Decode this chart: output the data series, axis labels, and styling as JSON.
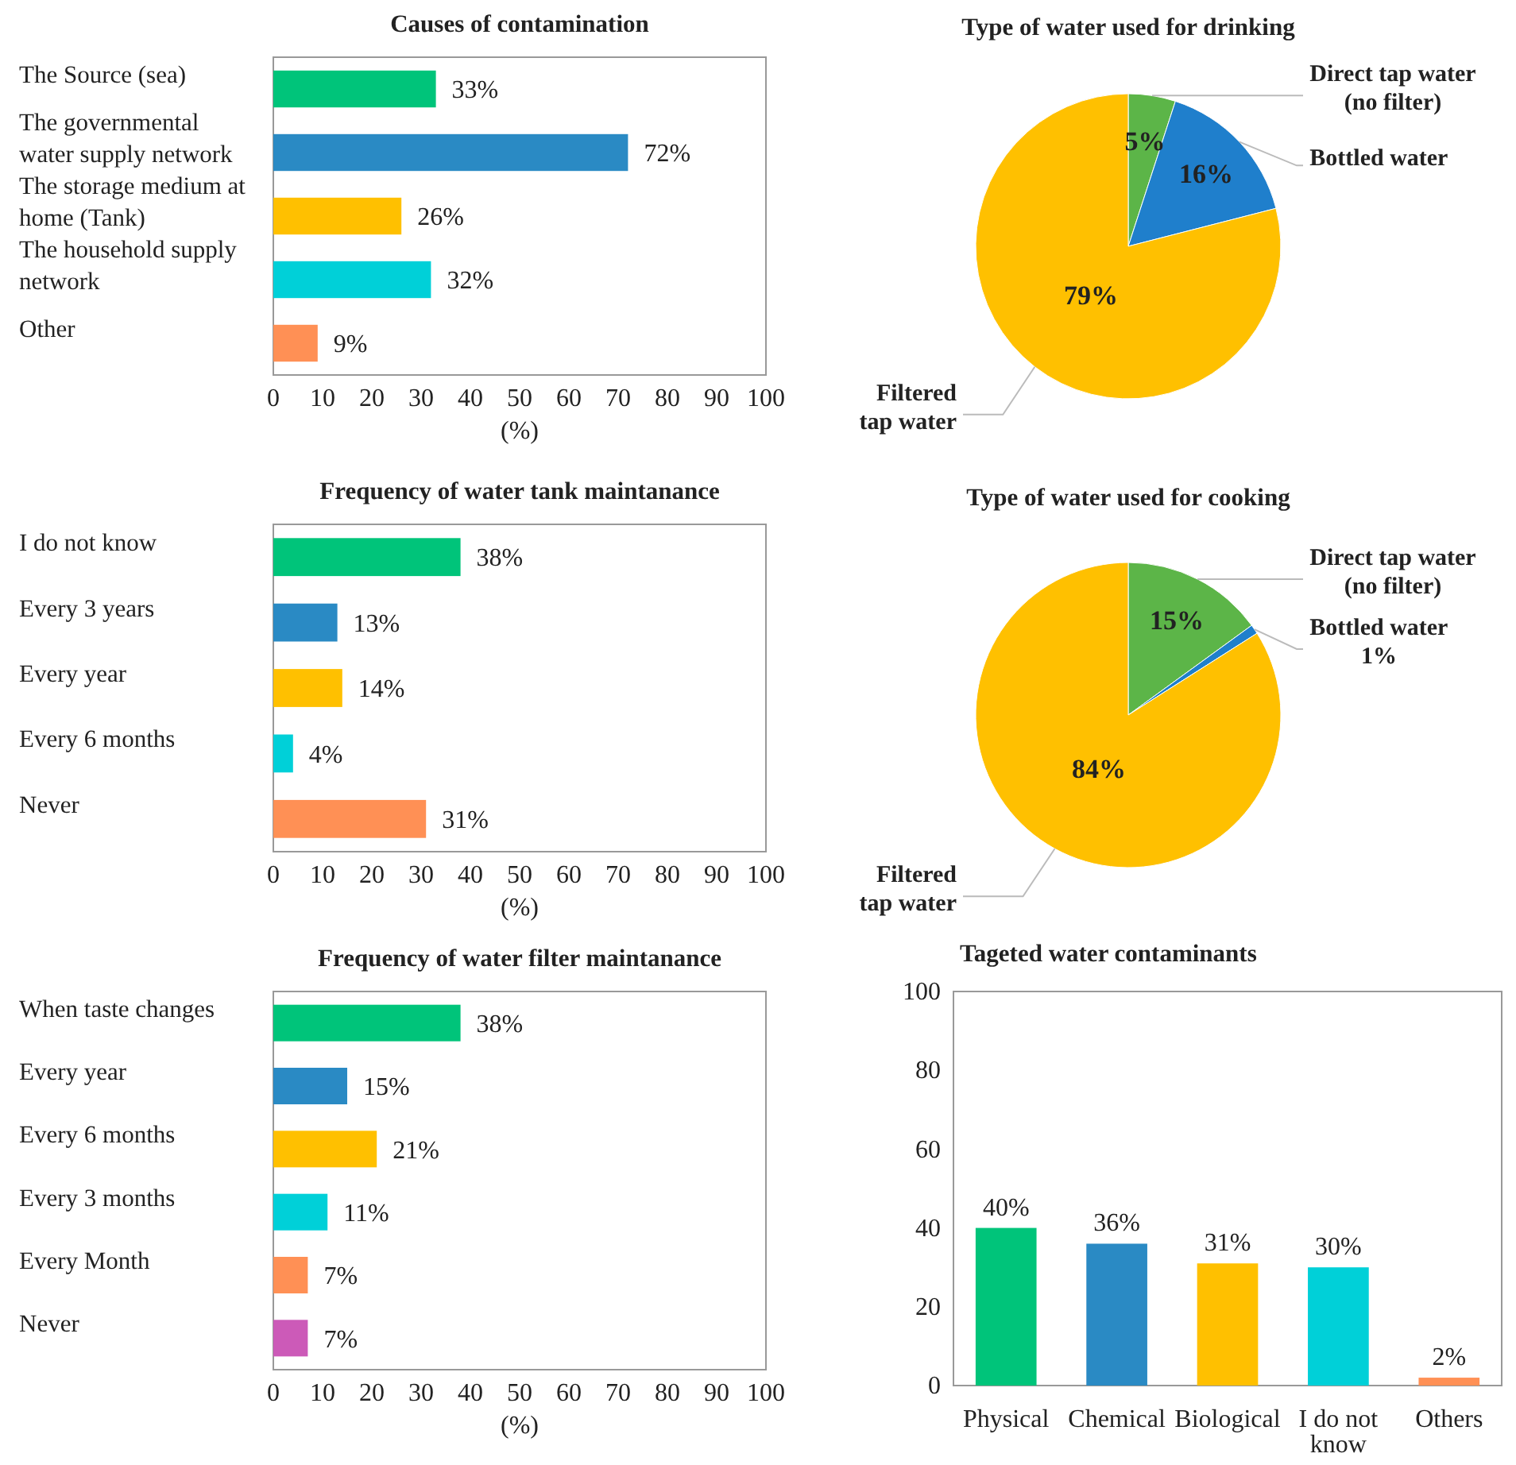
{
  "chart_data": [
    {
      "type": "bar",
      "orientation": "horizontal",
      "title": "Causes of contamination",
      "xlabel": "(%)",
      "categories": [
        "The Source (sea)",
        "The governmental water supply network",
        "The storage medium at home (Tank)",
        "The household supply network",
        "Other"
      ],
      "values": [
        33,
        72,
        26,
        32,
        9
      ],
      "colors": [
        "#00c47a",
        "#2a8ac4",
        "#ffc000",
        "#00d0d8",
        "#ff9055"
      ],
      "value_labels": [
        "33%",
        "72%",
        "26%",
        "32%",
        "9%"
      ],
      "xlim": [
        0,
        100
      ],
      "xticks": [
        0,
        10,
        20,
        30,
        40,
        50,
        60,
        70,
        80,
        90,
        100
      ],
      "grid": false
    },
    {
      "type": "pie",
      "title": "Type of water  used for drinking",
      "categories": [
        "Direct tap water (no filter)",
        "Bottled water",
        "Filtered tap water"
      ],
      "values": [
        5,
        16,
        79
      ],
      "colors": [
        "#5cb548",
        "#1f7fcc",
        "#ffc000"
      ],
      "value_labels": [
        "5%",
        "16%",
        "79%"
      ]
    },
    {
      "type": "bar",
      "orientation": "horizontal",
      "title": "Frequency of water tank maintanance",
      "xlabel": "(%)",
      "categories": [
        "I do not know",
        "Every 3 years",
        "Every year",
        "Every 6 months",
        "Never"
      ],
      "values": [
        38,
        13,
        14,
        4,
        31
      ],
      "colors": [
        "#00c47a",
        "#2a8ac4",
        "#ffc000",
        "#00d0d8",
        "#ff9055"
      ],
      "value_labels": [
        "38%",
        "13%",
        "14%",
        "4%",
        "31%"
      ],
      "xlim": [
        0,
        100
      ],
      "xticks": [
        0,
        10,
        20,
        30,
        40,
        50,
        60,
        70,
        80,
        90,
        100
      ],
      "grid": false
    },
    {
      "type": "pie",
      "title": "Type of water used for cooking",
      "categories": [
        "Direct tap water (no filter)",
        "Bottled water",
        "Filtered tap water"
      ],
      "values": [
        15,
        1,
        84
      ],
      "colors": [
        "#5cb548",
        "#1f7fcc",
        "#ffc000"
      ],
      "value_labels": [
        "15%",
        "1%",
        "84%"
      ]
    },
    {
      "type": "bar",
      "orientation": "horizontal",
      "title": "Frequency of water filter maintanance",
      "xlabel": "(%)",
      "categories": [
        "When taste changes",
        "Every year",
        "Every 6 months",
        "Every 3 months",
        "Every Month",
        "Never"
      ],
      "values": [
        38,
        15,
        21,
        11,
        7,
        7
      ],
      "colors": [
        "#00c47a",
        "#2a8ac4",
        "#ffc000",
        "#00d0d8",
        "#ff9055",
        "#cc5ab8"
      ],
      "value_labels": [
        "38%",
        "15%",
        "21%",
        "11%",
        "7%",
        "7%"
      ],
      "xlim": [
        0,
        100
      ],
      "xticks": [
        0,
        10,
        20,
        30,
        40,
        50,
        60,
        70,
        80,
        90,
        100
      ],
      "grid": false
    },
    {
      "type": "bar",
      "title": "Tageted water contaminants",
      "categories": [
        "Physical",
        "Chemical",
        "Biological",
        "I do not know",
        "Others"
      ],
      "values": [
        40,
        36,
        31,
        30,
        2
      ],
      "colors": [
        "#00c47a",
        "#2a8ac4",
        "#ffc000",
        "#00d0d8",
        "#ff9055"
      ],
      "value_labels": [
        "40%",
        "36%",
        "31%",
        "30%",
        "2%"
      ],
      "ylim": [
        0,
        100
      ],
      "yticks": [
        0,
        20,
        40,
        60,
        80,
        100
      ],
      "grid": false
    }
  ]
}
